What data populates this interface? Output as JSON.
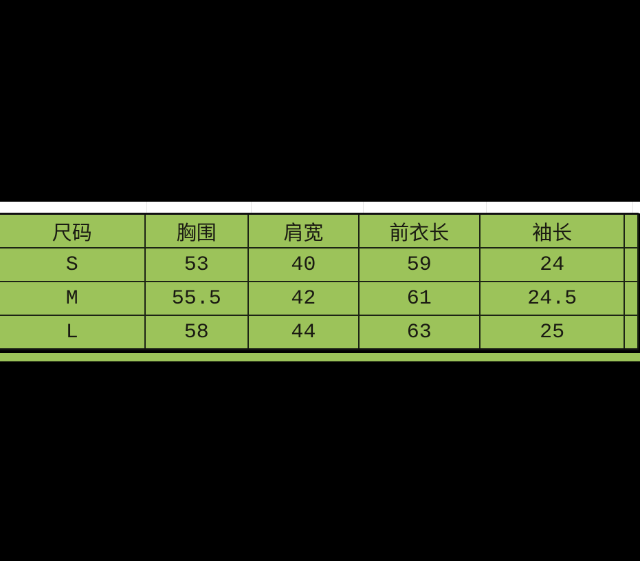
{
  "table": {
    "headers": [
      "尺码",
      "胸围",
      "肩宽",
      "前衣长",
      "袖长"
    ],
    "rows": [
      [
        "S",
        "53",
        "40",
        "59",
        "24"
      ],
      [
        "M",
        "55.5",
        "42",
        "61",
        "24.5"
      ],
      [
        "L",
        "58",
        "44",
        "63",
        "25"
      ]
    ]
  },
  "colors": {
    "cell_background": "#9cc35a",
    "border": "#1d2415",
    "page_background": "#000000"
  }
}
